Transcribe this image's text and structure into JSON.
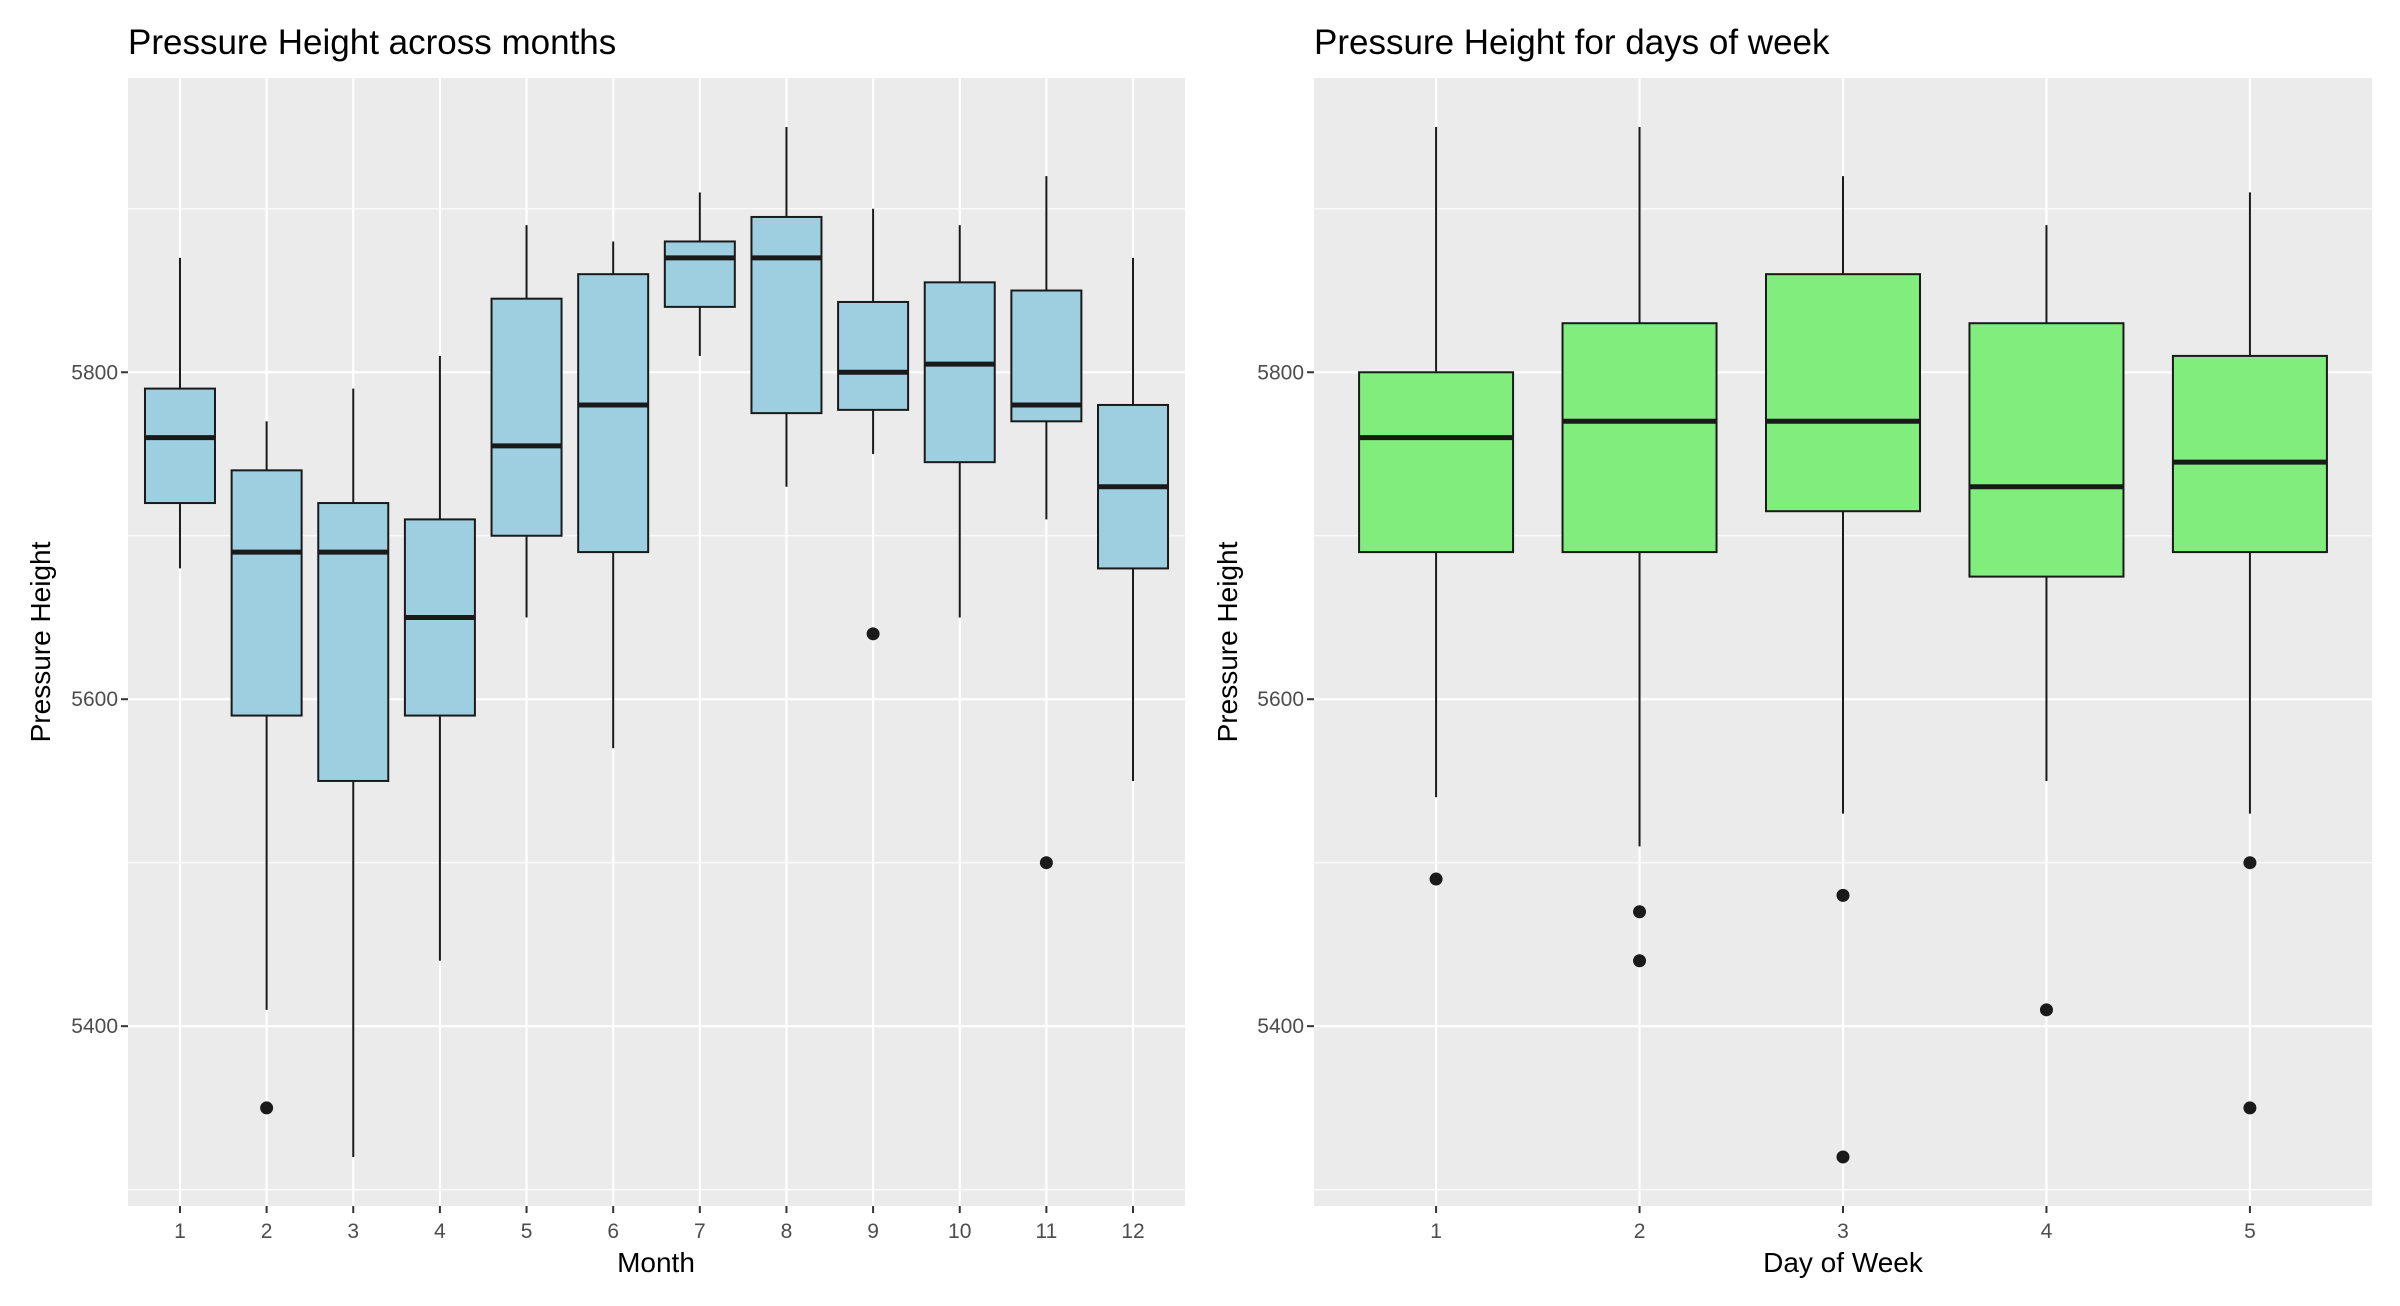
{
  "chart_data": [
    {
      "type": "boxplot",
      "title": "Pressure Height across months",
      "xlabel": "Month",
      "ylabel": "Pressure Height",
      "categories": [
        "1",
        "2",
        "3",
        "4",
        "5",
        "6",
        "7",
        "8",
        "9",
        "10",
        "11",
        "12"
      ],
      "y_ticks": [
        5400,
        5600,
        5800
      ],
      "ylim": [
        5290,
        5980
      ],
      "fill": "#9ecfe1",
      "boxes": [
        {
          "q1": 5720,
          "median": 5760,
          "q3": 5790,
          "lower": 5680,
          "upper": 5870,
          "outliers": []
        },
        {
          "q1": 5590,
          "median": 5690,
          "q3": 5740,
          "lower": 5410,
          "upper": 5770,
          "outliers": [
            5350
          ]
        },
        {
          "q1": 5550,
          "median": 5690,
          "q3": 5720,
          "lower": 5320,
          "upper": 5790,
          "outliers": []
        },
        {
          "q1": 5590,
          "median": 5650,
          "q3": 5710,
          "lower": 5440,
          "upper": 5810,
          "outliers": []
        },
        {
          "q1": 5700,
          "median": 5755,
          "q3": 5845,
          "lower": 5650,
          "upper": 5890,
          "outliers": []
        },
        {
          "q1": 5690,
          "median": 5780,
          "q3": 5860,
          "lower": 5570,
          "upper": 5880,
          "outliers": []
        },
        {
          "q1": 5840,
          "median": 5870,
          "q3": 5880,
          "lower": 5810,
          "upper": 5910,
          "outliers": []
        },
        {
          "q1": 5775,
          "median": 5870,
          "q3": 5895,
          "lower": 5730,
          "upper": 5950,
          "outliers": []
        },
        {
          "q1": 5777,
          "median": 5800,
          "q3": 5843,
          "lower": 5750,
          "upper": 5900,
          "outliers": [
            5640
          ]
        },
        {
          "q1": 5745,
          "median": 5805,
          "q3": 5855,
          "lower": 5650,
          "upper": 5890,
          "outliers": []
        },
        {
          "q1": 5770,
          "median": 5780,
          "q3": 5850,
          "lower": 5710,
          "upper": 5920,
          "outliers": [
            5500
          ]
        },
        {
          "q1": 5680,
          "median": 5730,
          "q3": 5780,
          "lower": 5550,
          "upper": 5870,
          "outliers": []
        }
      ]
    },
    {
      "type": "boxplot",
      "title": "Pressure Height for days of week",
      "xlabel": "Day of Week",
      "ylabel": "Pressure Height",
      "categories": [
        "1",
        "2",
        "3",
        "4",
        "5"
      ],
      "y_ticks": [
        5400,
        5600,
        5800
      ],
      "ylim": [
        5290,
        5980
      ],
      "fill": "#80ed7c",
      "boxes": [
        {
          "q1": 5690,
          "median": 5760,
          "q3": 5800,
          "lower": 5540,
          "upper": 5950,
          "outliers": [
            5490
          ]
        },
        {
          "q1": 5690,
          "median": 5770,
          "q3": 5830,
          "lower": 5510,
          "upper": 5950,
          "outliers": [
            5470,
            5440
          ]
        },
        {
          "q1": 5715,
          "median": 5770,
          "q3": 5860,
          "lower": 5530,
          "upper": 5920,
          "outliers": [
            5480,
            5320
          ]
        },
        {
          "q1": 5675,
          "median": 5730,
          "q3": 5830,
          "lower": 5550,
          "upper": 5890,
          "outliers": [
            5410
          ]
        },
        {
          "q1": 5690,
          "median": 5745,
          "q3": 5810,
          "lower": 5530,
          "upper": 5910,
          "outliers": [
            5500,
            5350
          ]
        }
      ]
    }
  ]
}
